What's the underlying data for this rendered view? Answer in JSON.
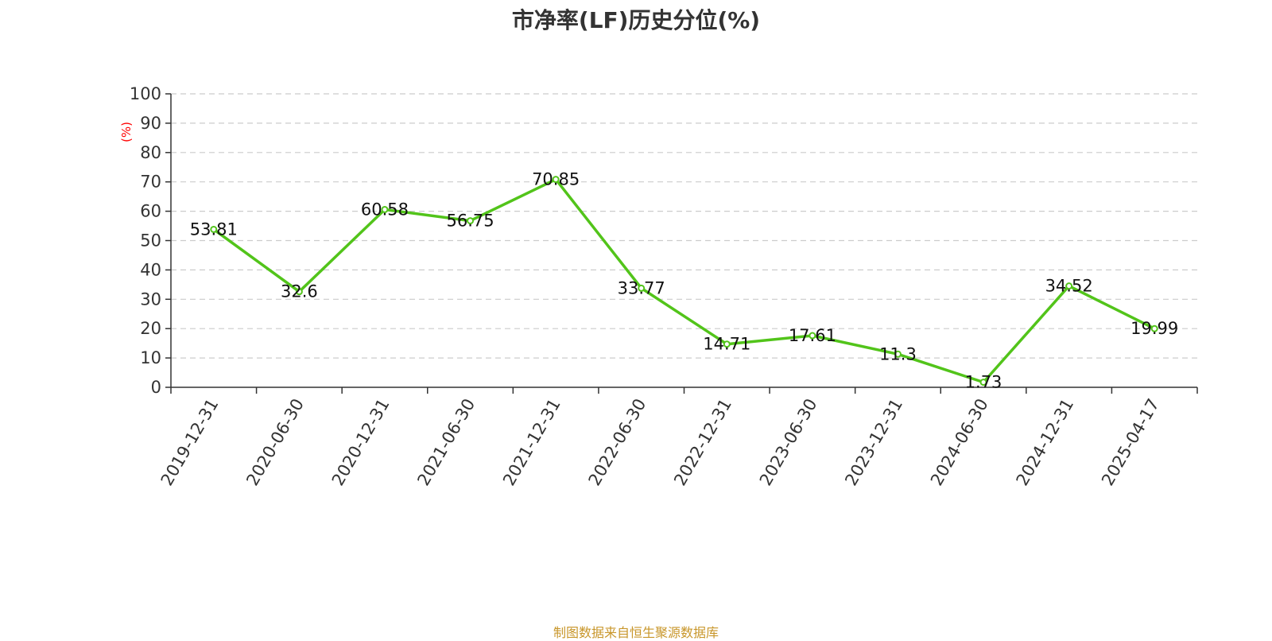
{
  "title": "市净率(LF)历史分位(%)",
  "footer": "制图数据来自恒生聚源数据库",
  "colors": {
    "line": "#52c41a",
    "ylabel": "#ff0000",
    "footer": "#c8962a",
    "grid": "#cccccc",
    "axis": "#333333"
  },
  "chart_data": {
    "type": "line",
    "title": "市净率(LF)历史分位(%)",
    "xlabel": "",
    "ylabel": "(%)",
    "ylim": [
      0,
      100
    ],
    "yticks": [
      0,
      10,
      20,
      30,
      40,
      50,
      60,
      70,
      80,
      90,
      100
    ],
    "grid": true,
    "categories": [
      "2019-12-31",
      "2020-06-30",
      "2020-12-31",
      "2021-06-30",
      "2021-12-31",
      "2022-06-30",
      "2022-12-31",
      "2023-06-30",
      "2023-12-31",
      "2024-06-30",
      "2024-12-31",
      "2025-04-17"
    ],
    "series": [
      {
        "values": [
          53.81,
          32.6,
          60.58,
          56.75,
          70.85,
          33.77,
          14.71,
          17.61,
          11.3,
          1.73,
          34.52,
          19.99
        ]
      }
    ]
  }
}
